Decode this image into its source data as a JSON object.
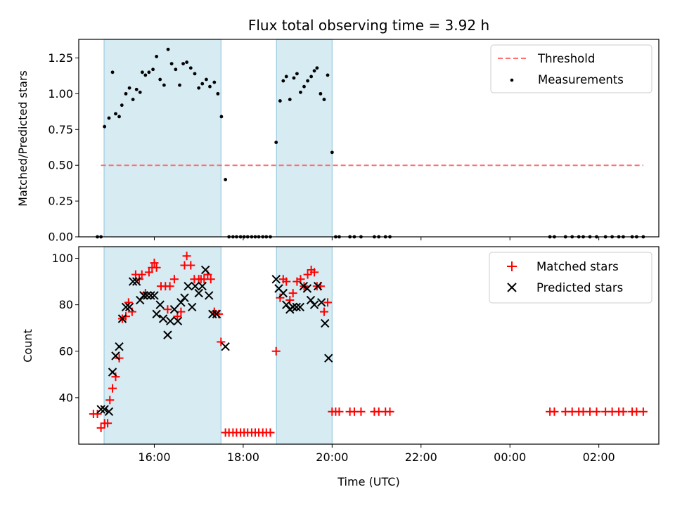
{
  "chart_data": [
    {
      "type": "scatter",
      "title": "Flux total observing time = 3.92 h",
      "xlabel": "",
      "ylabel": "Matched/Predicted stars",
      "x_unit": "hours since 00:00 UTC on observing night (values above 24 are the following day)",
      "xlim": [
        14.3,
        27.35
      ],
      "ylim": [
        0.0,
        1.38
      ],
      "yticks": [
        "0.00",
        "0.25",
        "0.50",
        "0.75",
        "1.00",
        "1.25"
      ],
      "grid": false,
      "legend_position": "top-right",
      "observing_windows": [
        [
          14.87,
          17.5
        ],
        [
          18.75,
          20.0
        ]
      ],
      "series": [
        {
          "name": "Threshold",
          "style": "dashed-line",
          "color": "#ff7070",
          "points": [
            [
              14.8,
              0.5
            ],
            [
              27.0,
              0.5
            ]
          ]
        },
        {
          "name": "Measurements",
          "style": "dots",
          "color": "#000000",
          "points": [
            [
              14.72,
              0.0
            ],
            [
              14.8,
              0.0
            ],
            [
              14.88,
              0.77
            ],
            [
              14.98,
              0.83
            ],
            [
              15.06,
              1.15
            ],
            [
              15.13,
              0.86
            ],
            [
              15.21,
              0.84
            ],
            [
              15.27,
              0.92
            ],
            [
              15.36,
              1.0
            ],
            [
              15.44,
              1.04
            ],
            [
              15.52,
              0.96
            ],
            [
              15.6,
              1.03
            ],
            [
              15.68,
              1.01
            ],
            [
              15.73,
              1.15
            ],
            [
              15.8,
              1.13
            ],
            [
              15.88,
              1.15
            ],
            [
              15.97,
              1.17
            ],
            [
              16.05,
              1.26
            ],
            [
              16.13,
              1.1
            ],
            [
              16.22,
              1.06
            ],
            [
              16.31,
              1.31
            ],
            [
              16.39,
              1.21
            ],
            [
              16.48,
              1.17
            ],
            [
              16.57,
              1.06
            ],
            [
              16.65,
              1.21
            ],
            [
              16.73,
              1.22
            ],
            [
              16.82,
              1.18
            ],
            [
              16.91,
              1.14
            ],
            [
              17.0,
              1.04
            ],
            [
              17.08,
              1.07
            ],
            [
              17.17,
              1.1
            ],
            [
              17.25,
              1.05
            ],
            [
              17.35,
              1.08
            ],
            [
              17.43,
              1.0
            ],
            [
              17.51,
              0.84
            ],
            [
              17.6,
              0.4
            ],
            [
              17.68,
              0.0
            ],
            [
              17.77,
              0.0
            ],
            [
              17.85,
              0.0
            ],
            [
              17.94,
              0.0
            ],
            [
              18.02,
              0.0
            ],
            [
              18.1,
              0.0
            ],
            [
              18.19,
              0.0
            ],
            [
              18.27,
              0.0
            ],
            [
              18.35,
              0.0
            ],
            [
              18.44,
              0.0
            ],
            [
              18.52,
              0.0
            ],
            [
              18.61,
              0.0
            ],
            [
              18.74,
              0.66
            ],
            [
              18.83,
              0.95
            ],
            [
              18.9,
              1.09
            ],
            [
              18.97,
              1.12
            ],
            [
              19.05,
              0.96
            ],
            [
              19.14,
              1.11
            ],
            [
              19.21,
              1.14
            ],
            [
              19.29,
              1.01
            ],
            [
              19.37,
              1.05
            ],
            [
              19.45,
              1.09
            ],
            [
              19.53,
              1.12
            ],
            [
              19.6,
              1.16
            ],
            [
              19.66,
              1.18
            ],
            [
              19.74,
              1.0
            ],
            [
              19.82,
              0.96
            ],
            [
              19.9,
              1.13
            ],
            [
              20.0,
              0.59
            ],
            [
              20.08,
              0.0
            ],
            [
              20.16,
              0.0
            ],
            [
              20.4,
              0.0
            ],
            [
              20.5,
              0.0
            ],
            [
              20.65,
              0.0
            ],
            [
              20.95,
              0.0
            ],
            [
              21.05,
              0.0
            ],
            [
              21.2,
              0.0
            ],
            [
              21.3,
              0.0
            ],
            [
              24.9,
              0.0
            ],
            [
              25.0,
              0.0
            ],
            [
              25.25,
              0.0
            ],
            [
              25.4,
              0.0
            ],
            [
              25.55,
              0.0
            ],
            [
              25.65,
              0.0
            ],
            [
              25.8,
              0.0
            ],
            [
              25.95,
              0.0
            ],
            [
              26.15,
              0.0
            ],
            [
              26.3,
              0.0
            ],
            [
              26.45,
              0.0
            ],
            [
              26.55,
              0.0
            ],
            [
              26.75,
              0.0
            ],
            [
              26.85,
              0.0
            ],
            [
              27.0,
              0.0
            ]
          ]
        }
      ]
    },
    {
      "type": "scatter",
      "title": "",
      "xlabel": "Time (UTC)",
      "ylabel": "Count",
      "x_unit": "hours since 00:00 UTC on observing night (values above 24 are the following day)",
      "xlim": [
        14.3,
        27.35
      ],
      "ylim": [
        20,
        105
      ],
      "yticks": [
        "40",
        "60",
        "80",
        "100"
      ],
      "xticks": [
        {
          "value": 16,
          "label": "16:00"
        },
        {
          "value": 18,
          "label": "18:00"
        },
        {
          "value": 20,
          "label": "20:00"
        },
        {
          "value": 22,
          "label": "22:00"
        },
        {
          "value": 24,
          "label": "00:00"
        },
        {
          "value": 26,
          "label": "02:00"
        }
      ],
      "grid": false,
      "legend_position": "top-right",
      "observing_windows": [
        [
          14.87,
          17.5
        ],
        [
          18.75,
          20.0
        ]
      ],
      "series": [
        {
          "name": "Matched stars",
          "style": "plus",
          "color": "#ff0000",
          "points": [
            [
              14.63,
              33
            ],
            [
              14.72,
              33
            ],
            [
              14.8,
              27
            ],
            [
              14.88,
              29
            ],
            [
              14.95,
              29
            ],
            [
              15.0,
              39
            ],
            [
              15.06,
              44
            ],
            [
              15.13,
              49
            ],
            [
              15.21,
              57
            ],
            [
              15.28,
              74
            ],
            [
              15.36,
              75
            ],
            [
              15.42,
              81
            ],
            [
              15.5,
              77
            ],
            [
              15.58,
              93
            ],
            [
              15.66,
              91
            ],
            [
              15.72,
              93
            ],
            [
              15.8,
              85
            ],
            [
              15.88,
              94
            ],
            [
              15.95,
              96
            ],
            [
              16.0,
              98
            ],
            [
              16.05,
              96
            ],
            [
              16.15,
              88
            ],
            [
              16.25,
              88
            ],
            [
              16.3,
              78
            ],
            [
              16.35,
              88
            ],
            [
              16.45,
              91
            ],
            [
              16.52,
              75
            ],
            [
              16.6,
              77
            ],
            [
              16.68,
              97
            ],
            [
              16.73,
              101
            ],
            [
              16.82,
              97
            ],
            [
              16.9,
              91
            ],
            [
              17.0,
              91
            ],
            [
              17.05,
              91
            ],
            [
              17.12,
              91
            ],
            [
              17.2,
              93
            ],
            [
              17.27,
              91
            ],
            [
              17.35,
              77
            ],
            [
              17.45,
              76
            ],
            [
              17.5,
              64
            ],
            [
              17.6,
              25
            ],
            [
              17.68,
              25
            ],
            [
              17.77,
              25
            ],
            [
              17.85,
              25
            ],
            [
              17.94,
              25
            ],
            [
              18.02,
              25
            ],
            [
              18.1,
              25
            ],
            [
              18.19,
              25
            ],
            [
              18.27,
              25
            ],
            [
              18.35,
              25
            ],
            [
              18.44,
              25
            ],
            [
              18.52,
              25
            ],
            [
              18.61,
              25
            ],
            [
              18.74,
              60
            ],
            [
              18.83,
              83
            ],
            [
              18.9,
              91
            ],
            [
              18.97,
              90
            ],
            [
              19.05,
              82
            ],
            [
              19.12,
              85
            ],
            [
              19.21,
              90
            ],
            [
              19.29,
              91
            ],
            [
              19.37,
              88
            ],
            [
              19.45,
              93
            ],
            [
              19.53,
              95
            ],
            [
              19.6,
              94
            ],
            [
              19.66,
              88
            ],
            [
              19.74,
              88
            ],
            [
              19.82,
              77
            ],
            [
              19.9,
              81
            ],
            [
              20.0,
              34
            ],
            [
              20.08,
              34
            ],
            [
              20.16,
              34
            ],
            [
              20.4,
              34
            ],
            [
              20.5,
              34
            ],
            [
              20.65,
              34
            ],
            [
              20.95,
              34
            ],
            [
              21.05,
              34
            ],
            [
              21.2,
              34
            ],
            [
              21.3,
              34
            ],
            [
              24.9,
              34
            ],
            [
              25.0,
              34
            ],
            [
              25.25,
              34
            ],
            [
              25.4,
              34
            ],
            [
              25.55,
              34
            ],
            [
              25.65,
              34
            ],
            [
              25.8,
              34
            ],
            [
              25.95,
              34
            ],
            [
              26.15,
              34
            ],
            [
              26.3,
              34
            ],
            [
              26.45,
              34
            ],
            [
              26.55,
              34
            ],
            [
              26.75,
              34
            ],
            [
              26.85,
              34
            ],
            [
              27.0,
              34
            ]
          ]
        },
        {
          "name": "Predicted stars",
          "style": "cross",
          "color": "#000000",
          "points": [
            [
              14.8,
              35
            ],
            [
              14.88,
              35
            ],
            [
              14.98,
              34
            ],
            [
              15.06,
              51
            ],
            [
              15.13,
              58
            ],
            [
              15.21,
              62
            ],
            [
              15.28,
              74
            ],
            [
              15.36,
              79
            ],
            [
              15.44,
              79
            ],
            [
              15.52,
              90
            ],
            [
              15.6,
              90
            ],
            [
              15.68,
              82
            ],
            [
              15.76,
              84
            ],
            [
              15.84,
              84
            ],
            [
              15.92,
              84
            ],
            [
              16.0,
              84
            ],
            [
              16.05,
              76
            ],
            [
              16.13,
              80
            ],
            [
              16.2,
              74
            ],
            [
              16.3,
              67
            ],
            [
              16.36,
              73
            ],
            [
              16.45,
              78
            ],
            [
              16.53,
              73
            ],
            [
              16.6,
              81
            ],
            [
              16.68,
              83
            ],
            [
              16.76,
              88
            ],
            [
              16.85,
              79
            ],
            [
              16.92,
              88
            ],
            [
              17.0,
              85
            ],
            [
              17.08,
              88
            ],
            [
              17.15,
              95
            ],
            [
              17.23,
              84
            ],
            [
              17.31,
              76
            ],
            [
              17.4,
              76
            ],
            [
              17.6,
              62
            ],
            [
              18.74,
              91
            ],
            [
              18.8,
              87
            ],
            [
              18.9,
              85
            ],
            [
              18.97,
              80
            ],
            [
              19.05,
              78
            ],
            [
              19.12,
              79
            ],
            [
              19.2,
              79
            ],
            [
              19.28,
              79
            ],
            [
              19.36,
              88
            ],
            [
              19.44,
              87
            ],
            [
              19.52,
              82
            ],
            [
              19.6,
              80
            ],
            [
              19.68,
              88
            ],
            [
              19.76,
              81
            ],
            [
              19.84,
              72
            ],
            [
              19.92,
              57
            ]
          ]
        }
      ]
    }
  ]
}
